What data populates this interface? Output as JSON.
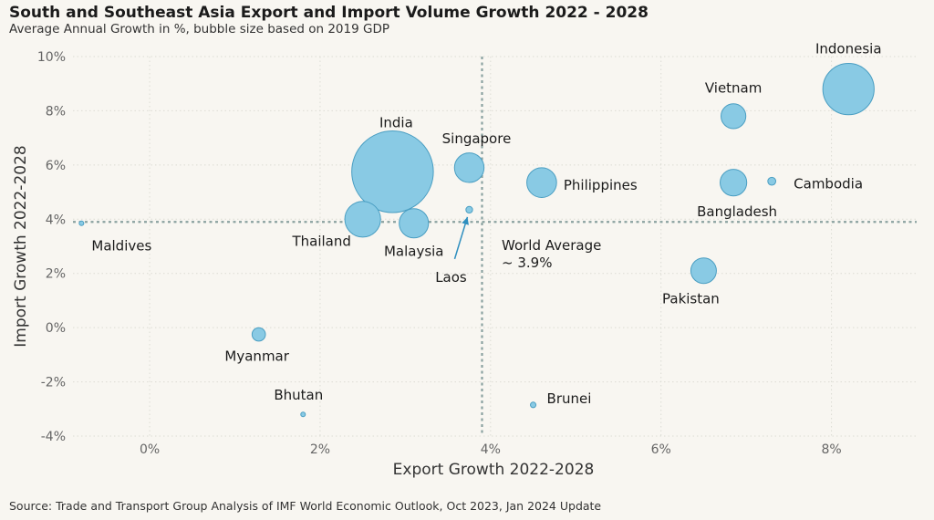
{
  "title": "South and Southeast Asia Export and Import Volume Growth 2022 - 2028",
  "subtitle": "Average Annual Growth in %, bubble size based on 2019 GDP",
  "source": "Source: Trade and Transport Group Analysis of IMF World Economic Outlook, Oct 2023, Jan 2024 Update",
  "chart_data": {
    "type": "scatter",
    "title": "South and Southeast Asia Export and Import Volume Growth 2022 - 2028",
    "subtitle": "Average Annual Growth in %, bubble size based on 2019 GDP",
    "xlabel": "Export Growth 2022-2028",
    "ylabel": "Import Growth 2022-2028",
    "xlim": [
      -0.9,
      9.0
    ],
    "ylim": [
      -4.0,
      10.0
    ],
    "x_ticks": [
      0,
      2,
      4,
      6,
      8
    ],
    "y_ticks": [
      -4,
      -2,
      0,
      2,
      4,
      6,
      8,
      10
    ],
    "x_tick_labels": [
      "0%",
      "2%",
      "4%",
      "6%",
      "8%"
    ],
    "y_tick_labels": [
      "-4%",
      "-2%",
      "0%",
      "2%",
      "4%",
      "6%",
      "8%",
      "10%"
    ],
    "grid": true,
    "bubble_color": "#89cae4",
    "bubble_edge_color": "#4a9ec2",
    "reference_lines": {
      "world_average": 3.9,
      "label_line1": "World Average",
      "label_line2": "~ 3.9%"
    },
    "points": [
      {
        "name": "Indonesia",
        "x": 8.2,
        "y": 8.8,
        "size": 1119
      },
      {
        "name": "Vietnam",
        "x": 6.85,
        "y": 7.8,
        "size": 262
      },
      {
        "name": "India",
        "x": 2.85,
        "y": 5.75,
        "size": 2835
      },
      {
        "name": "Singapore",
        "x": 3.75,
        "y": 5.9,
        "size": 372
      },
      {
        "name": "Philippines",
        "x": 4.6,
        "y": 5.35,
        "size": 377
      },
      {
        "name": "Bangladesh",
        "x": 6.85,
        "y": 5.35,
        "size": 302
      },
      {
        "name": "Cambodia",
        "x": 7.3,
        "y": 5.4,
        "size": 27
      },
      {
        "name": "Thailand",
        "x": 2.5,
        "y": 4.0,
        "size": 544
      },
      {
        "name": "Malaysia",
        "x": 3.1,
        "y": 3.85,
        "size": 365
      },
      {
        "name": "Laos",
        "x": 3.75,
        "y": 4.35,
        "size": 19
      },
      {
        "name": "Maldives",
        "x": -0.8,
        "y": 3.85,
        "size": 6
      },
      {
        "name": "Pakistan",
        "x": 6.5,
        "y": 2.1,
        "size": 278
      },
      {
        "name": "Myanmar",
        "x": 1.28,
        "y": -0.25,
        "size": 76
      },
      {
        "name": "Bhutan",
        "x": 1.8,
        "y": -3.2,
        "size": 2.5
      },
      {
        "name": "Brunei",
        "x": 4.5,
        "y": -2.85,
        "size": 13
      }
    ]
  }
}
